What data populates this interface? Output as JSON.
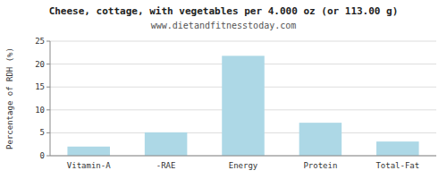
{
  "chart_data": {
    "type": "bar",
    "title": "Cheese, cottage, with vegetables per 4.000 oz (or 113.00 g)",
    "subtitle": "www.dietandfitnesstoday.com",
    "categories": [
      "Vitamin-A",
      "-RAE",
      "Energy",
      "Protein",
      "Total-Fat"
    ],
    "values": [
      2.0,
      5.1,
      21.8,
      7.2,
      3.1
    ],
    "color": "#add8e6",
    "ylabel": "Percentage of RDH (%)",
    "ylim": [
      0,
      25
    ],
    "yticks": [
      0,
      5,
      10,
      15,
      20,
      25
    ],
    "grid": true
  }
}
